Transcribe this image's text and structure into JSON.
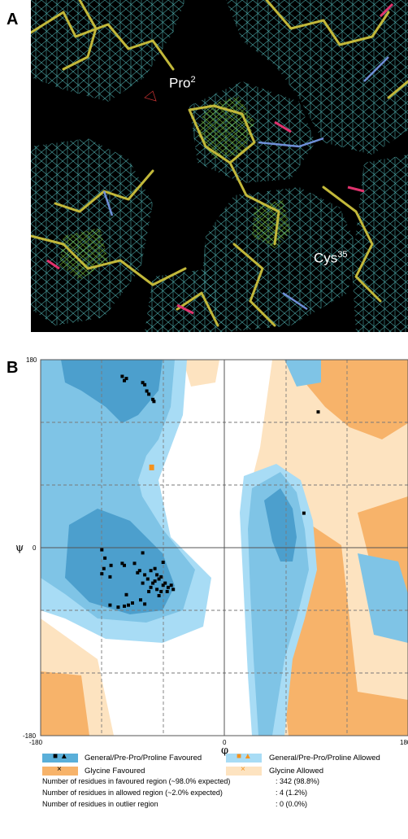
{
  "panel_a": {
    "letter": "A",
    "label_1": {
      "name": "Pro",
      "sup": "2"
    },
    "label_2": {
      "name": "Cys",
      "sup": "35"
    }
  },
  "panel_b": {
    "letter": "B",
    "chart_data": {
      "type": "scatter",
      "title": "",
      "xlabel": "φ",
      "ylabel": "ψ",
      "xlim": [
        -180,
        180
      ],
      "ylim": [
        -180,
        180
      ],
      "x_tick_labels": [
        "-180",
        "0",
        "180"
      ],
      "y_tick_labels": [
        "180",
        "0",
        "-180"
      ],
      "grid": "dashed",
      "series": [
        {
          "name": "General/Pre-Pro/Proline Favoured",
          "color": "#000000",
          "points": [
            [
              -100,
              164
            ],
            [
              -96,
              162
            ],
            [
              -98,
              160
            ],
            [
              -80,
              158
            ],
            [
              -78,
              156
            ],
            [
              -76,
              150
            ],
            [
              -74,
              147
            ],
            [
              -69,
              140
            ],
            [
              -70,
              142
            ],
            [
              -120,
              -2
            ],
            [
              -117,
              -10
            ],
            [
              -100,
              -15
            ],
            [
              -98,
              -17
            ],
            [
              -111,
              -17
            ],
            [
              -118,
              -20
            ],
            [
              -120,
              -25
            ],
            [
              -112,
              -28
            ],
            [
              -83,
              -22
            ],
            [
              -85,
              -24
            ],
            [
              -80,
              -5
            ],
            [
              -88,
              -15
            ],
            [
              -60,
              -14
            ],
            [
              -72,
              -22
            ],
            [
              -66,
              -26
            ],
            [
              -64,
              -30
            ],
            [
              -62,
              -28
            ],
            [
              -68,
              -32
            ],
            [
              -58,
              -34
            ],
            [
              -70,
              -34
            ],
            [
              -60,
              -36
            ],
            [
              -55,
              -38
            ],
            [
              -75,
              -30
            ],
            [
              -78,
              -26
            ],
            [
              -66,
              -40
            ],
            [
              -62,
              -42
            ],
            [
              -56,
              -42
            ],
            [
              -52,
              -36
            ],
            [
              -50,
              -40
            ],
            [
              -72,
              -38
            ],
            [
              -80,
              -34
            ],
            [
              -68,
              -20
            ],
            [
              -74,
              -42
            ],
            [
              -64,
              -46
            ],
            [
              -90,
              -53
            ],
            [
              -94,
              -55
            ],
            [
              -112,
              -55
            ],
            [
              -104,
              -57
            ],
            [
              -98,
              -56
            ],
            [
              -78,
              -54
            ],
            [
              -82,
              -50
            ],
            [
              -96,
              -45
            ],
            [
              78,
              33
            ],
            [
              92,
              130
            ]
          ]
        },
        {
          "name": "General/Pre-Pro/Proline Allowed",
          "color": "#f5921e",
          "points": [
            [
              -72,
              78
            ]
          ]
        }
      ],
      "legend": [
        {
          "label": "General/Pre-Pro/Proline Favoured",
          "color": "#5aafd9",
          "markers": "■ ▲"
        },
        {
          "label": "General/Pre-Pro/Proline Allowed",
          "color": "#a8dcf5",
          "markers": "■ ▲"
        },
        {
          "label": "Glycine Favoured",
          "color": "#f7b36a",
          "markers": "×"
        },
        {
          "label": "Glycine Allowed",
          "color": "#fde3c0",
          "markers": "×"
        }
      ]
    },
    "stats": [
      {
        "label": "Number of residues in favoured region (~98.0% expected)",
        "value": ": 342  (98.8%)"
      },
      {
        "label": "Number of residues in allowed region (~2.0% expected)",
        "value": ": 4  (1.2%)"
      },
      {
        "label": "Number of residues in outlier region",
        "value": ": 0  (0.0%)"
      }
    ]
  }
}
